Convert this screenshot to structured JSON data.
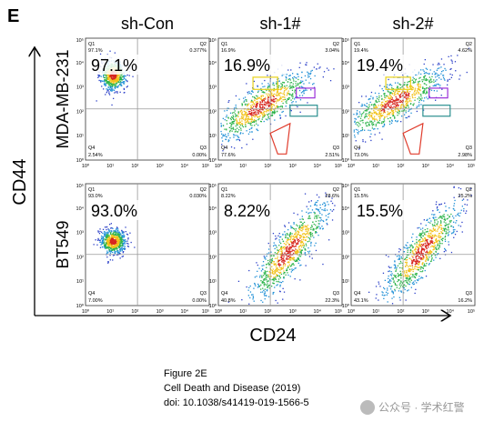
{
  "panel_letter": "E",
  "columns": [
    "sh-Con",
    "sh-1#",
    "sh-2#"
  ],
  "rows": [
    "MDA-MB-231",
    "BT549"
  ],
  "y_axis_label": "CD44",
  "x_axis_label": "CD24",
  "axis_ticks": [
    "10⁰",
    "10¹",
    "10²",
    "10³",
    "10⁴",
    "10⁵"
  ],
  "quadrant_names": [
    "Q1",
    "Q2",
    "Q3",
    "Q4"
  ],
  "plots": [
    [
      {
        "big": "97.1%",
        "q": [
          "97.1%",
          "0.377%",
          "0.00%",
          "2.54%"
        ]
      },
      {
        "big": "16.9%",
        "q": [
          "16.9%",
          "3.04%",
          "2.51%",
          "77.6%"
        ]
      },
      {
        "big": "19.4%",
        "q": [
          "19.4%",
          "4.62%",
          "2.98%",
          "73.0%"
        ]
      }
    ],
    [
      {
        "big": "93.0%",
        "q": [
          "93.0%",
          "0.030%",
          "0.00%",
          "7.00%"
        ]
      },
      {
        "big": "8.22%",
        "q": [
          "8.22%",
          "28.6%",
          "22.3%",
          "40.8%"
        ]
      },
      {
        "big": "15.5%",
        "q": [
          "15.5%",
          "25.2%",
          "16.2%",
          "43.1%"
        ]
      }
    ]
  ],
  "caption": [
    "Figure 2E",
    "Cell Death and Disease (2019)",
    "doi: 10.1038/s41419-019-1566-5"
  ],
  "watermark": "公众号 · 学术红警"
}
